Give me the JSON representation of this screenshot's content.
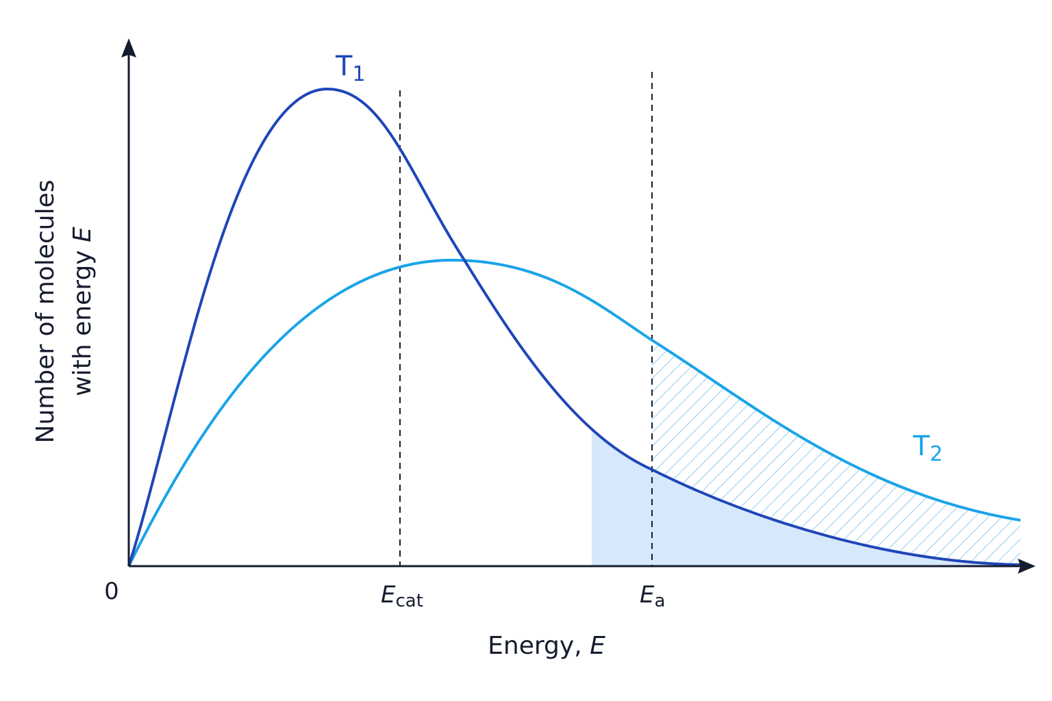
{
  "axes": {
    "origin": "0",
    "x_label": {
      "text": "Energy, ",
      "symbol": "E"
    },
    "y_label": {
      "line1": "Number of molecules",
      "line2": "with energy ",
      "symbol": "E"
    }
  },
  "curves": [
    {
      "label": "T",
      "subscript": "1"
    },
    {
      "label": "T",
      "subscript": "2"
    }
  ],
  "markers": [
    {
      "symbol": "E",
      "subscript": "cat"
    },
    {
      "symbol": "E",
      "subscript": "a"
    }
  ]
}
